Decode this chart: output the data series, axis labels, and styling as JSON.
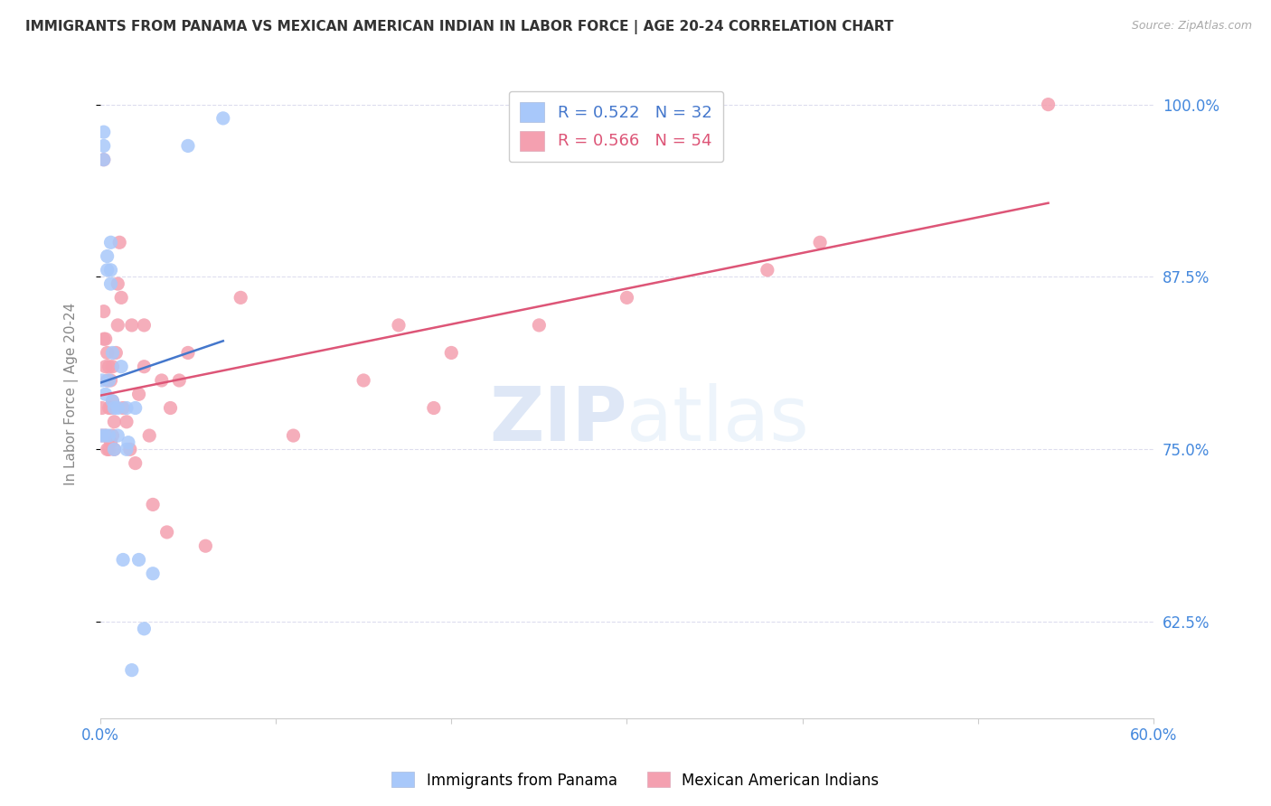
{
  "title": "IMMIGRANTS FROM PANAMA VS MEXICAN AMERICAN INDIAN IN LABOR FORCE | AGE 20-24 CORRELATION CHART",
  "source": "Source: ZipAtlas.com",
  "ylabel": "In Labor Force | Age 20-24",
  "legend_label1": "Immigrants from Panama",
  "legend_label2": "Mexican American Indians",
  "R1": 0.522,
  "N1": 32,
  "R2": 0.566,
  "N2": 54,
  "color1": "#a8c8fa",
  "color2": "#f4a0b0",
  "trendline1_color": "#4477cc",
  "trendline2_color": "#dd5577",
  "watermark_zip": "ZIP",
  "watermark_atlas": "atlas",
  "xlim": [
    0.0,
    0.6
  ],
  "ylim": [
    0.555,
    1.025
  ],
  "yticks": [
    0.625,
    0.75,
    0.875,
    1.0
  ],
  "ytick_labels": [
    "62.5%",
    "75.0%",
    "87.5%",
    "100.0%"
  ],
  "xticks": [
    0.0,
    0.1,
    0.2,
    0.3,
    0.4,
    0.5,
    0.6
  ],
  "axis_color": "#4488dd",
  "grid_color": "#ddddee",
  "panama_x": [
    0.001,
    0.001,
    0.002,
    0.002,
    0.002,
    0.003,
    0.003,
    0.004,
    0.004,
    0.005,
    0.005,
    0.006,
    0.006,
    0.006,
    0.007,
    0.007,
    0.008,
    0.008,
    0.01,
    0.01,
    0.012,
    0.013,
    0.015,
    0.015,
    0.016,
    0.018,
    0.02,
    0.022,
    0.025,
    0.03,
    0.05,
    0.07
  ],
  "panama_y": [
    0.76,
    0.8,
    0.96,
    0.97,
    0.98,
    0.76,
    0.79,
    0.88,
    0.89,
    0.76,
    0.8,
    0.87,
    0.88,
    0.9,
    0.785,
    0.82,
    0.75,
    0.78,
    0.76,
    0.78,
    0.81,
    0.67,
    0.75,
    0.78,
    0.755,
    0.59,
    0.78,
    0.67,
    0.62,
    0.66,
    0.97,
    0.99
  ],
  "mexican_x": [
    0.001,
    0.001,
    0.002,
    0.002,
    0.002,
    0.003,
    0.003,
    0.003,
    0.004,
    0.004,
    0.004,
    0.005,
    0.005,
    0.005,
    0.006,
    0.006,
    0.006,
    0.007,
    0.007,
    0.007,
    0.008,
    0.008,
    0.009,
    0.01,
    0.01,
    0.011,
    0.012,
    0.013,
    0.015,
    0.017,
    0.018,
    0.02,
    0.022,
    0.025,
    0.025,
    0.028,
    0.03,
    0.035,
    0.038,
    0.04,
    0.045,
    0.05,
    0.06,
    0.08,
    0.11,
    0.15,
    0.17,
    0.19,
    0.2,
    0.25,
    0.3,
    0.38,
    0.41,
    0.54
  ],
  "mexican_y": [
    0.76,
    0.78,
    0.83,
    0.85,
    0.96,
    0.76,
    0.81,
    0.83,
    0.75,
    0.8,
    0.82,
    0.75,
    0.78,
    0.81,
    0.755,
    0.78,
    0.8,
    0.76,
    0.785,
    0.81,
    0.75,
    0.77,
    0.82,
    0.84,
    0.87,
    0.9,
    0.86,
    0.78,
    0.77,
    0.75,
    0.84,
    0.74,
    0.79,
    0.81,
    0.84,
    0.76,
    0.71,
    0.8,
    0.69,
    0.78,
    0.8,
    0.82,
    0.68,
    0.86,
    0.76,
    0.8,
    0.84,
    0.78,
    0.82,
    0.84,
    0.86,
    0.88,
    0.9,
    1.0
  ]
}
